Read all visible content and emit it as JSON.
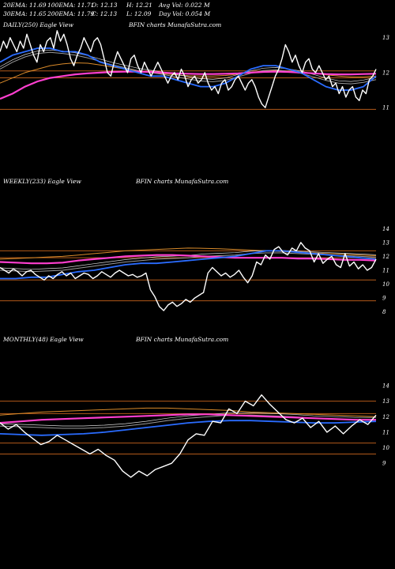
{
  "header": {
    "row1": [
      "20EMA: 11.69",
      "100EMA: 11.71",
      "O: 12.13",
      "H: 12.21",
      "Avg Vol: 0.022  M"
    ],
    "row2": [
      "30EMA: 11.65",
      "200EMA: 11.79",
      "C: 12.13",
      "L: 12.09",
      "Day Vol: 0.054  M"
    ]
  },
  "colors": {
    "background": "#000000",
    "price": "#ffffff",
    "ema_blue": "#2a6cff",
    "ema_magenta": "#ff3fd0",
    "ema_orange": "#d98a2a",
    "ema_grey": "#9a9a9a",
    "ema_pale": "#d8d8d8",
    "gridline": "#b25a1a"
  },
  "chart_data": [
    {
      "type": "line",
      "title": "DAILY(250) Eagle  View",
      "watermark": "BFIN  charts MunafaSutra.com",
      "yticks": [
        13,
        12,
        11
      ],
      "ylim": [
        10.8,
        13.4
      ],
      "grid_levels": [
        12.05,
        11.85,
        10.95
      ],
      "series": [
        {
          "key": "price",
          "values": [
            12.6,
            12.9,
            12.7,
            13.0,
            12.8,
            12.6,
            12.9,
            12.7,
            13.1,
            12.8,
            12.5,
            12.3,
            12.8,
            12.6,
            12.9,
            13.0,
            12.7,
            13.2,
            12.9,
            13.1,
            12.8,
            12.4,
            12.2,
            12.5,
            12.7,
            13.0,
            12.8,
            12.6,
            12.9,
            13.0,
            12.8,
            12.4,
            12.0,
            11.9,
            12.3,
            12.6,
            12.4,
            12.2,
            12.0,
            12.4,
            12.5,
            12.2,
            12.0,
            12.3,
            12.1,
            11.9,
            12.1,
            12.3,
            12.1,
            11.9,
            11.7,
            11.9,
            12.0,
            11.8,
            12.1,
            11.9,
            11.6,
            11.8,
            11.9,
            11.7,
            11.8,
            12.0,
            11.7,
            11.5,
            11.6,
            11.4,
            11.7,
            11.8,
            11.5,
            11.6,
            11.8,
            11.9,
            11.7,
            11.5,
            11.7,
            11.8,
            11.6,
            11.3,
            11.1,
            11.0,
            11.3,
            11.6,
            11.9,
            12.1,
            12.4,
            12.8,
            12.6,
            12.3,
            12.5,
            12.2,
            12.0,
            12.3,
            12.4,
            12.1,
            12.0,
            12.2,
            12.0,
            11.8,
            11.9,
            11.6,
            11.7,
            11.4,
            11.6,
            11.3,
            11.5,
            11.6,
            11.3,
            11.2,
            11.5,
            11.4,
            11.8,
            11.9,
            12.1
          ]
        },
        {
          "key": "ema_blue",
          "values": [
            12.3,
            12.5,
            12.6,
            12.7,
            12.7,
            12.6,
            12.6,
            12.5,
            12.3,
            12.2,
            12.1,
            12.0,
            11.9,
            11.9,
            11.8,
            11.7,
            11.6,
            11.6,
            11.7,
            11.9,
            12.1,
            12.2,
            12.2,
            12.1,
            12.0,
            11.8,
            11.6,
            11.5,
            11.5,
            11.6,
            11.9
          ]
        },
        {
          "key": "ema_magenta",
          "values": [
            11.25,
            11.4,
            11.6,
            11.75,
            11.85,
            11.9,
            11.95,
            11.98,
            12.0,
            12.02,
            12.03,
            12.03,
            12.02,
            12.0,
            11.98,
            11.97,
            11.96,
            11.96,
            11.97,
            11.98,
            12.0,
            12.02,
            12.03,
            12.02,
            12.0,
            11.98,
            11.96,
            11.95,
            11.95,
            11.96,
            11.97
          ]
        },
        {
          "key": "ema_orange",
          "values": [
            11.7,
            11.85,
            12.0,
            12.1,
            12.2,
            12.25,
            12.28,
            12.27,
            12.22,
            12.16,
            12.1,
            12.05,
            12.0,
            11.97,
            11.94,
            11.91,
            11.9,
            11.9,
            11.92,
            11.96,
            12.0,
            12.04,
            12.06,
            12.05,
            12.02,
            11.98,
            11.94,
            11.9,
            11.88,
            11.88,
            11.9
          ]
        },
        {
          "key": "ema_grey",
          "values": [
            12.1,
            12.3,
            12.45,
            12.55,
            12.58,
            12.55,
            12.5,
            12.42,
            12.32,
            12.22,
            12.14,
            12.06,
            12.0,
            11.95,
            11.88,
            11.82,
            11.76,
            11.74,
            11.78,
            11.88,
            11.98,
            12.06,
            12.08,
            12.04,
            11.98,
            11.88,
            11.78,
            11.7,
            11.68,
            11.72,
            11.8
          ]
        }
      ]
    },
    {
      "type": "line",
      "title": "WEEKLY(233) Eagle  View",
      "watermark": "BFIN  charts MunafaSutra.com",
      "yticks": [
        14,
        13,
        12,
        11,
        10,
        9,
        8
      ],
      "ylim": [
        7.7,
        14.3
      ],
      "grid_levels": [
        12.4,
        11.9,
        10.3,
        8.8
      ],
      "series": [
        {
          "key": "price",
          "values": [
            11.2,
            11.0,
            10.8,
            11.1,
            10.9,
            10.6,
            10.9,
            11.0,
            10.7,
            10.5,
            10.3,
            10.6,
            10.4,
            10.7,
            10.9,
            10.6,
            10.8,
            10.4,
            10.6,
            10.8,
            10.7,
            10.4,
            10.6,
            10.9,
            10.7,
            10.5,
            10.8,
            11.0,
            10.8,
            10.6,
            10.7,
            10.5,
            10.6,
            10.8,
            9.6,
            9.1,
            8.4,
            8.1,
            8.5,
            8.7,
            8.4,
            8.6,
            8.9,
            8.7,
            9.0,
            9.2,
            9.4,
            10.8,
            11.2,
            10.9,
            10.6,
            10.8,
            10.5,
            10.7,
            11.0,
            10.5,
            10.1,
            10.6,
            11.6,
            11.4,
            12.1,
            11.8,
            12.5,
            12.7,
            12.3,
            12.1,
            12.6,
            12.4,
            13.0,
            12.6,
            12.4,
            11.6,
            12.2,
            11.5,
            11.8,
            12.0,
            11.4,
            11.2,
            12.2,
            11.3,
            11.6,
            11.1,
            11.4,
            11.0,
            11.2,
            11.8
          ]
        },
        {
          "key": "ema_blue",
          "values": [
            10.4,
            10.4,
            10.5,
            10.5,
            10.7,
            10.9,
            11.0,
            11.2,
            11.4,
            11.5,
            11.5,
            11.6,
            11.7,
            11.8,
            11.9,
            12.0,
            12.2,
            12.4,
            12.4,
            12.3,
            12.2,
            12.1,
            12.0,
            11.9,
            11.8
          ]
        },
        {
          "key": "ema_magenta",
          "values": [
            11.6,
            11.55,
            11.5,
            11.5,
            11.55,
            11.7,
            11.8,
            11.9,
            12.0,
            12.05,
            12.1,
            12.1,
            12.05,
            12.0,
            11.95,
            11.9,
            11.9,
            11.9,
            11.9,
            11.85,
            11.85,
            11.8,
            11.75,
            11.75,
            11.7
          ]
        },
        {
          "key": "ema_orange",
          "values": [
            11.8,
            11.85,
            11.9,
            11.95,
            12.0,
            12.1,
            12.2,
            12.3,
            12.4,
            12.45,
            12.5,
            12.55,
            12.6,
            12.58,
            12.55,
            12.5,
            12.45,
            12.4,
            12.35,
            12.3,
            12.25,
            12.2,
            12.15,
            12.1,
            12.05
          ]
        },
        {
          "key": "ema_grey",
          "values": [
            11.0,
            10.95,
            10.9,
            10.95,
            11.0,
            11.15,
            11.3,
            11.45,
            11.6,
            11.7,
            11.8,
            11.85,
            11.9,
            12.0,
            12.05,
            12.1,
            12.2,
            12.25,
            12.25,
            12.2,
            12.15,
            12.1,
            12.05,
            12.0,
            11.95
          ]
        }
      ]
    },
    {
      "type": "line",
      "title": "MONTHLY(48) Eagle  View",
      "watermark": "BFIN  charts MunafaSutra.com",
      "yticks": [
        14,
        13,
        12,
        11,
        10,
        9
      ],
      "ylim": [
        8.3,
        14.2
      ],
      "grid_levels": [
        13.0,
        12.2,
        10.3,
        9.6
      ],
      "series": [
        {
          "key": "price",
          "values": [
            11.6,
            11.2,
            11.5,
            11.0,
            10.6,
            10.2,
            10.4,
            10.8,
            10.5,
            10.2,
            9.9,
            9.6,
            9.9,
            9.5,
            9.2,
            8.5,
            8.1,
            8.5,
            8.2,
            8.6,
            8.8,
            9.0,
            9.6,
            10.5,
            10.9,
            10.8,
            11.7,
            11.6,
            12.5,
            12.2,
            13.0,
            12.7,
            13.4,
            12.8,
            12.3,
            11.8,
            11.6,
            11.9,
            11.3,
            11.7,
            11.0,
            11.4,
            10.9,
            11.4,
            11.8,
            11.5,
            12.1
          ]
        },
        {
          "key": "ema_blue",
          "values": [
            10.9,
            10.85,
            10.8,
            10.85,
            10.9,
            11.0,
            11.15,
            11.3,
            11.45,
            11.6,
            11.7,
            11.75,
            11.75,
            11.7,
            11.65,
            11.6,
            11.6,
            11.65,
            11.7
          ]
        },
        {
          "key": "ema_magenta",
          "values": [
            11.6,
            11.7,
            11.8,
            11.85,
            11.9,
            11.95,
            12.0,
            12.05,
            12.1,
            12.15,
            12.15,
            12.1,
            12.05,
            12.0,
            11.95,
            11.9,
            11.85,
            11.8,
            11.8
          ]
        },
        {
          "key": "ema_orange",
          "values": [
            12.1,
            12.2,
            12.3,
            12.35,
            12.4,
            12.45,
            12.5,
            12.55,
            12.55,
            12.5,
            12.45,
            12.4,
            12.3,
            12.25,
            12.2,
            12.15,
            12.1,
            12.05,
            12.0
          ]
        },
        {
          "key": "ema_grey",
          "values": [
            11.4,
            11.35,
            11.3,
            11.25,
            11.25,
            11.3,
            11.4,
            11.55,
            11.75,
            11.9,
            12.0,
            12.1,
            12.1,
            12.05,
            12.0,
            11.9,
            11.85,
            11.8,
            11.8
          ]
        }
      ]
    }
  ]
}
